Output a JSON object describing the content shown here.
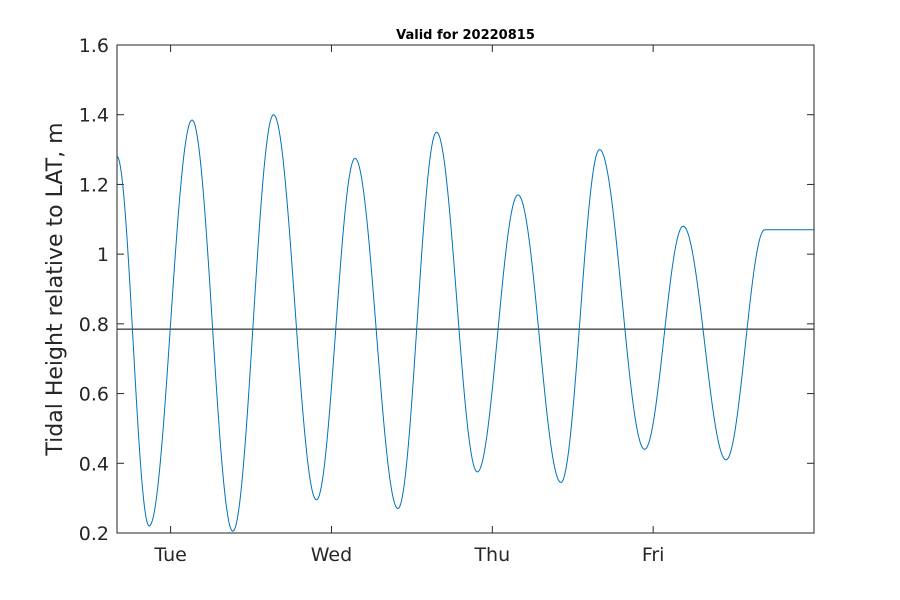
{
  "chart_data": {
    "type": "line",
    "title": "Valid for 20220815",
    "xlabel": "",
    "ylabel": "Tidal Height relative to LAT, m",
    "x_unit": "days",
    "xlim": [
      0,
      3.25
    ],
    "ylim": [
      0.2,
      1.6
    ],
    "x_ticks": [
      {
        "value": 0.25,
        "label": "Tue"
      },
      {
        "value": 1.0,
        "label": "Wed"
      },
      {
        "value": 1.75,
        "label": "Thu"
      },
      {
        "value": 2.5,
        "label": "Fri"
      }
    ],
    "y_ticks": [
      {
        "value": 0.2,
        "label": "0.2"
      },
      {
        "value": 0.4,
        "label": "0.4"
      },
      {
        "value": 0.6,
        "label": "0.6"
      },
      {
        "value": 0.8,
        "label": "0.8"
      },
      {
        "value": 1.0,
        "label": "1"
      },
      {
        "value": 1.2,
        "label": "1.2"
      },
      {
        "value": 1.4,
        "label": "1.4"
      },
      {
        "value": 1.6,
        "label": "1.6"
      }
    ],
    "grid": false,
    "reference_line": {
      "y": 0.785,
      "color": "#000000"
    },
    "series": [
      {
        "color": "#0072BD",
        "x": [
          0.0,
          0.15,
          0.35,
          0.54,
          0.73,
          0.93,
          1.11,
          1.31,
          1.49,
          1.68,
          1.87,
          2.07,
          2.25,
          2.46,
          2.64,
          2.84,
          3.02,
          3.25
        ],
        "y": [
          1.28,
          0.22,
          1.385,
          0.205,
          1.4,
          0.295,
          1.275,
          0.27,
          1.35,
          0.375,
          1.17,
          0.345,
          1.3,
          0.44,
          1.08,
          0.41,
          1.07,
          1.07
        ]
      }
    ]
  }
}
